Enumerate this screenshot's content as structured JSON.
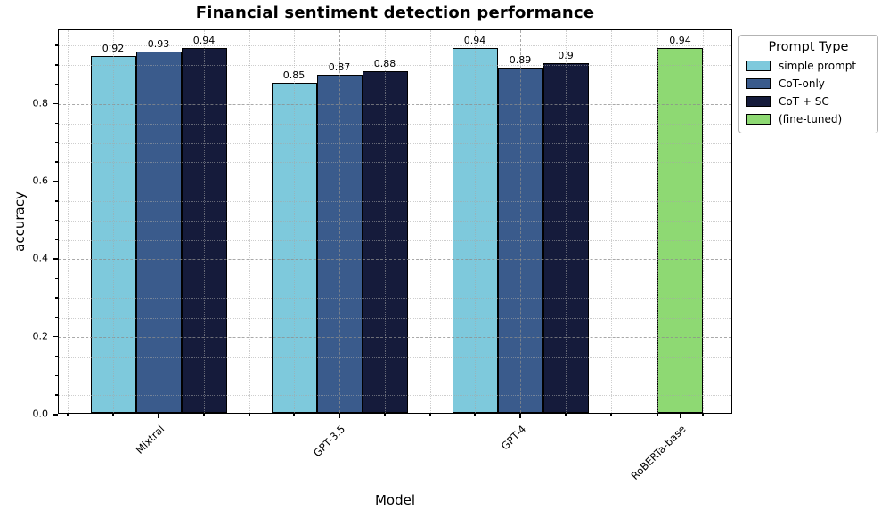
{
  "chart_data": {
    "type": "bar",
    "title": "Financial sentiment detection performance",
    "xlabel": "Model",
    "ylabel": "accuracy",
    "categories": [
      "Mixtral",
      "GPT-3.5",
      "GPT-4",
      "RoBERTa-base"
    ],
    "series": [
      {
        "name": "simple prompt",
        "color": "#7EC9DC",
        "values": [
          0.92,
          0.85,
          0.94,
          null
        ],
        "labels": [
          "0.92",
          "0.85",
          "0.94",
          null
        ]
      },
      {
        "name": "CoT-only",
        "color": "#3A5B8C",
        "values": [
          0.93,
          0.87,
          0.89,
          null
        ],
        "labels": [
          "0.93",
          "0.87",
          "0.89",
          null
        ]
      },
      {
        "name": "CoT + SC",
        "color": "#151B3B",
        "values": [
          0.94,
          0.88,
          0.9,
          null
        ],
        "labels": [
          "0.94",
          "0.88",
          "0.9",
          null
        ]
      },
      {
        "name": "(fine-tuned)",
        "color": "#8ED973",
        "values": [
          null,
          null,
          null,
          0.94
        ],
        "labels": [
          null,
          null,
          null,
          "0.94"
        ]
      }
    ],
    "ylim": [
      0,
      0.99
    ],
    "yticks": [
      0.0,
      0.2,
      0.4,
      0.6,
      0.8
    ],
    "ytick_labels": [
      "0.0",
      "0.2",
      "0.4",
      "0.6",
      "0.8"
    ],
    "minor_tick_step": 0.05,
    "grid": "major dashed + minor dotted, horizontal and vertical, drawn over bars",
    "legend": {
      "title": "Prompt Type",
      "position": "outside upper right"
    },
    "axis_color": "#000000",
    "background": "#ffffff"
  }
}
